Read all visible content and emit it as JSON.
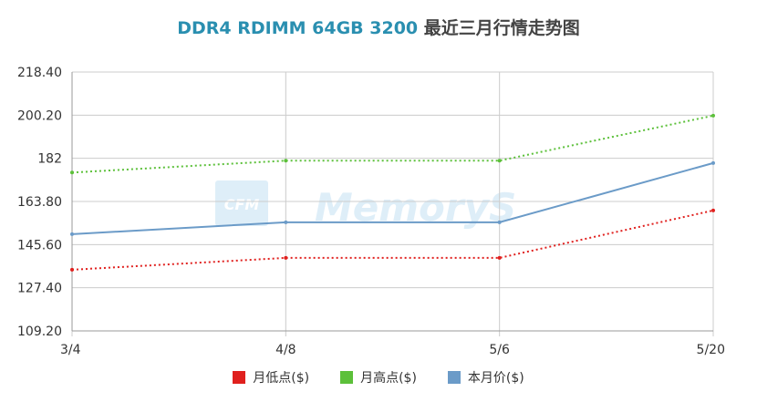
{
  "chart_title": {
    "main": "DDR4 RDIMM 64GB 3200",
    "suffix": "最近三月行情走势图"
  },
  "watermark": {
    "logo_text": "CFM",
    "brand_text": "MemoryS"
  },
  "colors": {
    "title": "#2a8fb0",
    "low": "#e0201e",
    "high": "#5cc03a",
    "price": "#6b9bc8",
    "grid": "#cccccc",
    "axis": "#999999"
  },
  "chart_data": {
    "type": "line",
    "title": "DDR4 RDIMM 64GB 3200 最近三月行情走势图",
    "categories": [
      "3/4",
      "4/8",
      "5/6",
      "5/20"
    ],
    "y_ticks": [
      "218.40",
      "200.20",
      "182",
      "163.80",
      "145.60",
      "127.40",
      "109.20"
    ],
    "ylim": [
      109.2,
      218.4
    ],
    "grid": true,
    "legend_position": "bottom",
    "series": [
      {
        "name": "月低点($)",
        "key": "low",
        "style": "dotted",
        "values": [
          135,
          140,
          140,
          160
        ]
      },
      {
        "name": "月高点($)",
        "key": "high",
        "style": "dotted",
        "values": [
          176,
          181,
          181,
          200
        ]
      },
      {
        "name": "本月价($)",
        "key": "price",
        "style": "solid",
        "values": [
          150,
          155,
          155,
          180
        ]
      }
    ]
  }
}
